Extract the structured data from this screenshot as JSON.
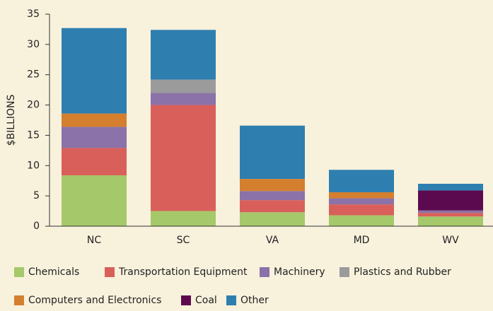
{
  "chart_data": {
    "type": "stacked_bar",
    "ylabel": "$BILLIONS",
    "categories": [
      "NC",
      "SC",
      "VA",
      "MD",
      "WV"
    ],
    "series": [
      {
        "name": "Chemicals",
        "color": "#a5c96a",
        "values": [
          8.4,
          2.5,
          2.3,
          1.8,
          1.6
        ]
      },
      {
        "name": "Transportation Equipment",
        "color": "#d9605a",
        "values": [
          4.5,
          17.5,
          2.0,
          1.8,
          0.6
        ]
      },
      {
        "name": "Machinery",
        "color": "#8b72a8",
        "values": [
          3.5,
          2.0,
          1.5,
          1.0,
          0.4
        ]
      },
      {
        "name": "Plastics and Rubber",
        "color": "#9b9b9b",
        "values": [
          0,
          2.2,
          0,
          0,
          0
        ]
      },
      {
        "name": "Computers and Electronics",
        "color": "#d47f2e",
        "values": [
          2.2,
          0,
          2.0,
          1.0,
          0
        ]
      },
      {
        "name": "Coal",
        "color": "#5c0a4f",
        "values": [
          0,
          0,
          0,
          0,
          3.3
        ]
      },
      {
        "name": "Other",
        "color": "#2e7fb0",
        "values": [
          14.1,
          8.2,
          8.8,
          3.7,
          1.1
        ]
      }
    ],
    "ylim": [
      0,
      35
    ],
    "yticks": [
      0,
      5,
      10,
      15,
      20,
      25,
      30,
      35
    ],
    "grid": false,
    "legend": "bottom"
  }
}
